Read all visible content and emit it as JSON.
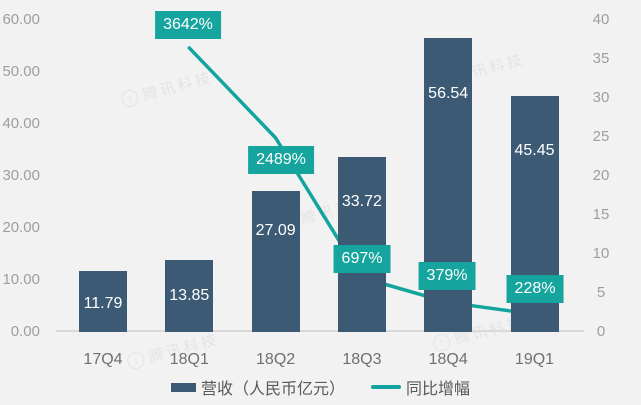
{
  "watermark": {
    "text": "腾讯科技",
    "logo_glyph": "t"
  },
  "colors": {
    "background": "#f2f2f2",
    "bar": "#3d5a75",
    "line": "#12a49e",
    "label_box": "#16a59e",
    "axis_line": "#d9d9d9",
    "tick_text": "#9e9e9e",
    "category_text": "#6f6f6f",
    "legend_text": "#595959",
    "bar_label_text": "#ffffff"
  },
  "chart_data": {
    "type": "bar",
    "combo": "bar+line dual axis",
    "title": "",
    "categories": [
      "17Q4",
      "18Q1",
      "18Q2",
      "18Q3",
      "18Q4",
      "19Q1"
    ],
    "series": [
      {
        "name": "营收（人民币亿元）",
        "type": "bar",
        "yaxis": "left",
        "values": [
          11.79,
          13.85,
          27.09,
          33.72,
          56.54,
          45.45
        ],
        "value_labels": [
          "11.79",
          "13.85",
          "27.09",
          "33.72",
          "56.54",
          "45.45"
        ]
      },
      {
        "name": "同比增幅",
        "type": "line",
        "yaxis": "right",
        "values_percent": [
          null,
          3642,
          2489,
          697,
          379,
          228
        ],
        "plotted": [
          null,
          36.42,
          24.89,
          6.97,
          3.79,
          2.28
        ],
        "point_labels": [
          null,
          "3642%",
          "2489%",
          "697%",
          "379%",
          "228%"
        ]
      }
    ],
    "left_axis": {
      "min": 0,
      "max": 60,
      "step": 10,
      "tick_labels": [
        "0.00",
        "10.00",
        "20.00",
        "30.00",
        "40.00",
        "50.00",
        "60.00"
      ]
    },
    "right_axis": {
      "min": 0,
      "max": 40,
      "step": 5,
      "tick_labels": [
        "0",
        "5",
        "10",
        "15",
        "20",
        "25",
        "30",
        "35",
        "40"
      ]
    },
    "grid": false,
    "legend_position": "bottom",
    "legend": [
      {
        "label": "营收（人民币亿元）",
        "swatch": "bar"
      },
      {
        "label": "同比增幅",
        "swatch": "line"
      }
    ]
  }
}
